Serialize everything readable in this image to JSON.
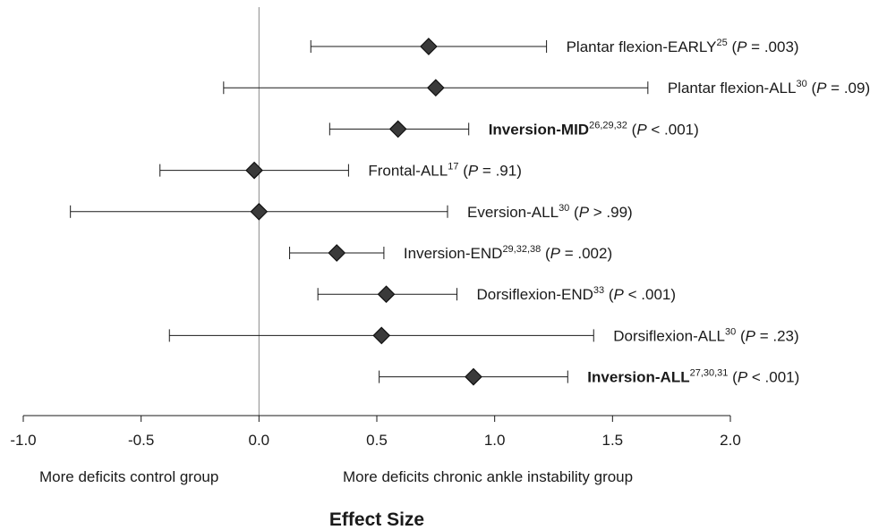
{
  "chart_data": {
    "type": "forest",
    "xlabel": "Effect Size",
    "xlim": [
      -1.0,
      2.0
    ],
    "xticks": [
      -1.0,
      -0.5,
      0.0,
      0.5,
      1.0,
      1.5,
      2.0
    ],
    "xtick_labels": [
      "-1.0",
      "-0.5",
      "0.0",
      "0.5",
      "1.0",
      "1.5",
      "2.0"
    ],
    "reference_line": 0.0,
    "left_annotation": "More deficits control group",
    "right_annotation": "More deficits chronic ankle instability group",
    "rows": [
      {
        "name": "Plantar flexion-EARLY",
        "refs": "25",
        "p_prefix": "(",
        "p_italic": "P",
        "p_value": " = .003)",
        "bold": false,
        "estimate": 0.72,
        "lower": 0.22,
        "upper": 1.22
      },
      {
        "name": "Plantar flexion-ALL",
        "refs": "30",
        "p_prefix": "(",
        "p_italic": "P",
        "p_value": " = .09)",
        "bold": false,
        "estimate": 0.75,
        "lower": -0.15,
        "upper": 1.65
      },
      {
        "name": "Inversion-MID",
        "refs": "26,29,32",
        "p_prefix": "(",
        "p_italic": "P",
        "p_value": " < .001)",
        "bold": true,
        "estimate": 0.59,
        "lower": 0.3,
        "upper": 0.89
      },
      {
        "name": "Frontal-ALL",
        "refs": "17",
        "p_prefix": "(",
        "p_italic": "P",
        "p_value": " = .91)",
        "bold": false,
        "estimate": -0.02,
        "lower": -0.42,
        "upper": 0.38
      },
      {
        "name": "Eversion-ALL",
        "refs": "30",
        "p_prefix": "(",
        "p_italic": "P",
        "p_value": " > .99)",
        "bold": false,
        "estimate": 0.0,
        "lower": -0.8,
        "upper": 0.8
      },
      {
        "name": "Inversion-END",
        "refs": "29,32,38",
        "p_prefix": "(",
        "p_italic": "P",
        "p_value": " = .002)",
        "bold": false,
        "estimate": 0.33,
        "lower": 0.13,
        "upper": 0.53
      },
      {
        "name": "Dorsiflexion-END",
        "refs": "33",
        "p_prefix": "(",
        "p_italic": "P",
        "p_value": " < .001)",
        "bold": false,
        "estimate": 0.54,
        "lower": 0.25,
        "upper": 0.84
      },
      {
        "name": "Dorsiflexion-ALL",
        "refs": "30",
        "p_prefix": "(",
        "p_italic": "P",
        "p_value": " = .23)",
        "bold": false,
        "estimate": 0.52,
        "lower": -0.38,
        "upper": 1.42
      },
      {
        "name": "Inversion-ALL",
        "refs": "27,30,31",
        "p_prefix": "(",
        "p_italic": "P",
        "p_value": " < .001)",
        "bold": true,
        "estimate": 0.91,
        "lower": 0.51,
        "upper": 1.31
      }
    ],
    "colors": {
      "marker_fill": "#3a3a3a",
      "line": "#1a1a1a",
      "reference": "#888888"
    }
  }
}
